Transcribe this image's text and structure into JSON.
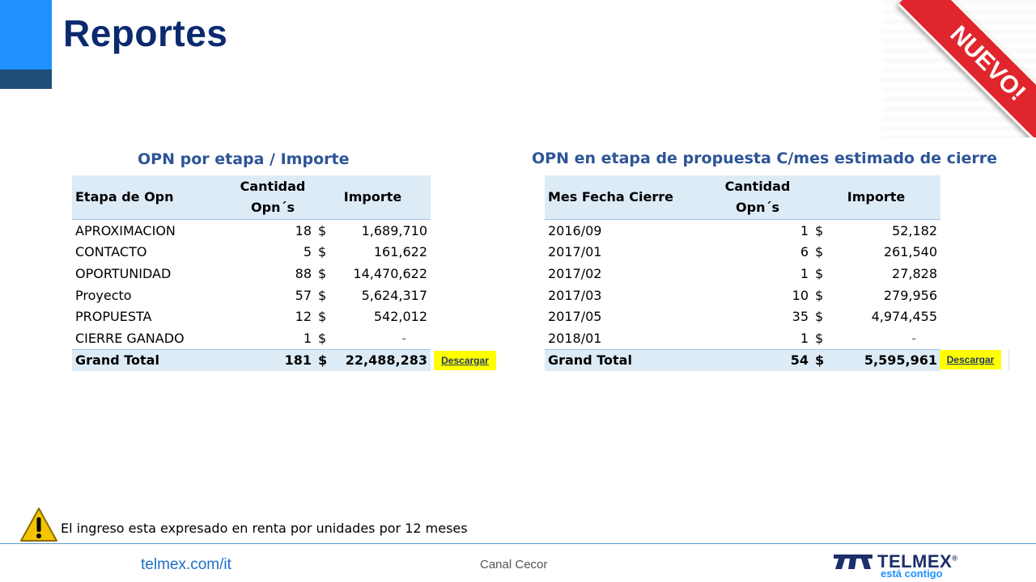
{
  "slide": {
    "title": "Reportes"
  },
  "ribbon": {
    "label": "NUEVO!"
  },
  "left_table": {
    "title": "OPN por etapa / Importe",
    "headers": [
      "Etapa de Opn",
      "Cantidad\nOpn´s",
      "Importe"
    ],
    "rows": [
      {
        "label": "APROXIMACION",
        "count": "18",
        "currency": "$",
        "amount": "1,689,710"
      },
      {
        "label": "CONTACTO",
        "count": "5",
        "currency": "$",
        "amount": "161,622"
      },
      {
        "label": "OPORTUNIDAD",
        "count": "88",
        "currency": "$",
        "amount": "14,470,622"
      },
      {
        "label": "Proyecto",
        "count": "57",
        "currency": "$",
        "amount": "5,624,317"
      },
      {
        "label": "PROPUESTA",
        "count": "12",
        "currency": "$",
        "amount": "542,012"
      },
      {
        "label": "CIERRE GANADO",
        "count": "1",
        "currency": "$",
        "amount": "-"
      }
    ],
    "total": {
      "label": "Grand Total",
      "count": "181",
      "currency": "$",
      "amount": "22,488,283"
    },
    "download_label": "Descargar"
  },
  "right_table": {
    "title": "OPN en etapa de propuesta  C/mes estimado de cierre",
    "headers": [
      "Mes Fecha Cierre",
      "Cantidad\nOpn´s",
      "Importe"
    ],
    "rows": [
      {
        "label": "2016/09",
        "count": "1",
        "currency": "$",
        "amount": "52,182"
      },
      {
        "label": "2017/01",
        "count": "6",
        "currency": "$",
        "amount": "261,540"
      },
      {
        "label": "2017/02",
        "count": "1",
        "currency": "$",
        "amount": "27,828"
      },
      {
        "label": "2017/03",
        "count": "10",
        "currency": "$",
        "amount": "279,956"
      },
      {
        "label": "2017/05",
        "count": "35",
        "currency": "$",
        "amount": "4,974,455"
      },
      {
        "label": "2018/01",
        "count": "1",
        "currency": "$",
        "amount": "-"
      }
    ],
    "total": {
      "label": "Grand Total",
      "count": "54",
      "currency": "$",
      "amount": "5,595,961"
    },
    "download_label": "Descargar"
  },
  "note": {
    "text": "El ingreso esta expresado  en renta por unidades por 12 meses"
  },
  "footer": {
    "url": "telmex.com/it",
    "center": "Canal Cecor",
    "brand": "TELMEX",
    "brand_mark": "®",
    "tagline": "está contigo"
  },
  "icons": {
    "warning": "warning-icon",
    "logo": "telmex-logo-icon"
  },
  "colors": {
    "title": "#0B2A6F",
    "accent": "#1E90FF",
    "header_fill": "#DDEBF7",
    "ribbon": "#E0262C",
    "download": "#FFFF00"
  }
}
